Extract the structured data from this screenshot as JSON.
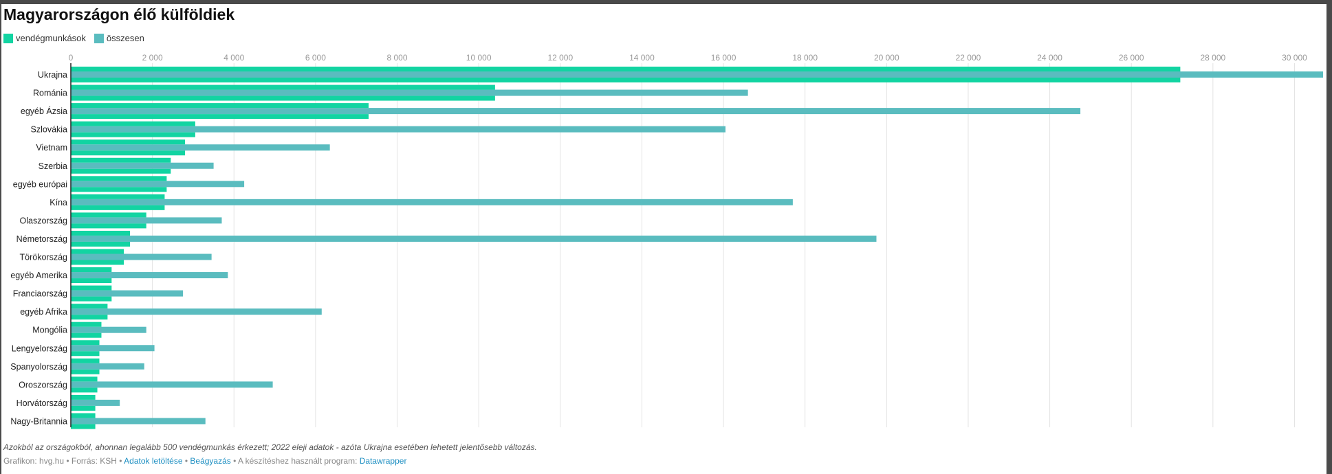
{
  "chart_data": {
    "type": "bar",
    "orientation": "horizontal",
    "title": "Magyarországon élő külföldiek",
    "categories": [
      "Ukrajna",
      "Románia",
      "egyéb Ázsia",
      "Szlovákia",
      "Vietnam",
      "Szerbia",
      "egyéb európai",
      "Kína",
      "Olaszország",
      "Németország",
      "Törökország",
      "egyéb Amerika",
      "Franciaország",
      "egyéb Afrika",
      "Mongólia",
      "Lengyelország",
      "Spanyolország",
      "Oroszország",
      "Horvátország",
      "Nagy-Britannia"
    ],
    "series": [
      {
        "name": "vendégmunkások",
        "color": "#12d4a2",
        "values": [
          27200,
          10400,
          7300,
          3050,
          2800,
          2450,
          2350,
          2300,
          1850,
          1450,
          1300,
          1000,
          1000,
          900,
          750,
          700,
          700,
          650,
          600,
          600
        ]
      },
      {
        "name": "összesen",
        "color": "#5abcbf",
        "values": [
          30700,
          16600,
          24750,
          16050,
          6350,
          3500,
          4250,
          17700,
          3700,
          19750,
          3450,
          3850,
          2750,
          6150,
          1850,
          2050,
          1800,
          4950,
          1200,
          3300
        ]
      }
    ],
    "xlim": [
      0,
      30700
    ],
    "xticks": [
      0,
      2000,
      4000,
      6000,
      8000,
      10000,
      12000,
      14000,
      16000,
      18000,
      20000,
      22000,
      24000,
      26000,
      28000,
      30000
    ],
    "xtick_labels": [
      "0",
      "2 000",
      "4 000",
      "6 000",
      "8 000",
      "10 000",
      "12 000",
      "14 000",
      "16 000",
      "18 000",
      "20 000",
      "22 000",
      "24 000",
      "26 000",
      "28 000",
      "30 000"
    ],
    "grid": true,
    "legend_position": "top-left"
  },
  "legend": [
    {
      "label": "vendégmunkások",
      "color": "#12d4a2"
    },
    {
      "label": "összesen",
      "color": "#5abcbf"
    }
  ],
  "note": "Azokból az országokból, ahonnan legalább 500 vendégmunkás érkezett; 2022 eleji adatok - azóta Ukrajna esetében lehetett jelentősebb változás.",
  "footer": {
    "credit": "Grafikon: hvg.hu • Forrás: KSH • ",
    "download": "Adatok letöltése",
    "sep1": " • ",
    "embed": "Beágyazás",
    "sep2": " • A készítéshez használt program: ",
    "tool": "Datawrapper"
  }
}
